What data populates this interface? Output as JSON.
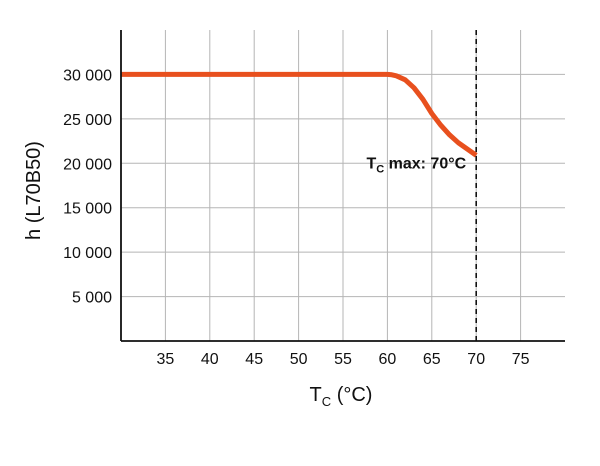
{
  "chart_data": {
    "type": "line",
    "xlabel": {
      "main": "T",
      "sub": "C",
      "suffix": " (°C)"
    },
    "ylabel": "h (L70B50)",
    "xlim": [
      30,
      80
    ],
    "ylim": [
      0,
      35000
    ],
    "x_ticks": [
      35,
      40,
      45,
      50,
      55,
      60,
      65,
      70,
      75
    ],
    "x_tick_labels": [
      "35",
      "40",
      "45",
      "50",
      "55",
      "60",
      "65",
      "70",
      "75"
    ],
    "y_ticks": [
      5000,
      10000,
      15000,
      20000,
      25000,
      30000
    ],
    "y_tick_labels": [
      "5 000",
      "10 000",
      "15 000",
      "20 000",
      "25 000",
      "30 000"
    ],
    "grid": true,
    "series": [
      {
        "color": "#e8501e",
        "x": [
          30,
          60,
          60.5,
          61,
          62,
          63,
          64,
          65,
          66,
          67,
          68,
          69,
          70
        ],
        "y": [
          30000,
          30000,
          29960,
          29850,
          29400,
          28500,
          27200,
          25600,
          24300,
          23200,
          22300,
          21600,
          20900
        ]
      }
    ],
    "annotations": [
      {
        "main": "T",
        "sub": "C",
        "suffix": " max: 70°C",
        "x": 70,
        "y": 20000,
        "line_style": "dashed"
      }
    ]
  }
}
